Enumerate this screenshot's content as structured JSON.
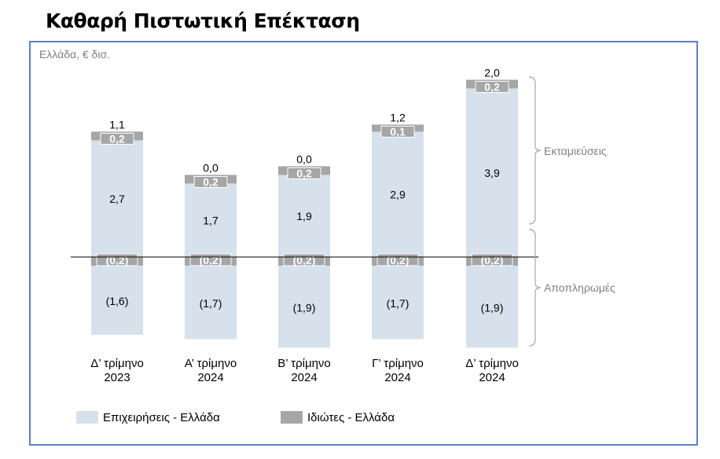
{
  "title": "Καθαρή Πιστωτική Επέκταση",
  "chart_data": {
    "type": "bar",
    "stacked": true,
    "title": "Καθαρή Πιστωτική Επέκταση",
    "subtitle": "Ελλάδα, € δισ.",
    "categories": [
      [
        "Δ’ τρίμηνο",
        "2023"
      ],
      [
        "Α’ τρίμηνο",
        "2024"
      ],
      [
        "Β’ τρίμηνο",
        "2024"
      ],
      [
        "Γ’ τρίμηνο",
        "2024"
      ],
      [
        "Δ’ τρίμηνο",
        "2024"
      ]
    ],
    "series": [
      {
        "name": "Επιχειρήσεις - Ελλάδα",
        "role": "disbursements",
        "color": "#d6e1ec",
        "values": [
          2.7,
          1.7,
          1.9,
          2.9,
          3.9
        ],
        "labels": [
          "2,7",
          "1,7",
          "1,9",
          "2,9",
          "3,9"
        ]
      },
      {
        "name": "Ιδιώτες - Ελλάδα",
        "role": "disbursements",
        "color": "#a6a6a6",
        "values": [
          0.2,
          0.2,
          0.2,
          0.1,
          0.2
        ],
        "labels": [
          "0,2",
          "0,2",
          "0,2",
          "0,1",
          "0,2"
        ]
      },
      {
        "name": "Ιδιώτες - Ελλάδα",
        "role": "repayments",
        "color": "#a6a6a6",
        "values": [
          -0.2,
          -0.2,
          -0.2,
          -0.2,
          -0.2
        ],
        "labels": [
          "(0,2)",
          "(0,2)",
          "(0,2)",
          "(0,2)",
          "(0,2)"
        ]
      },
      {
        "name": "Επιχειρήσεις - Ελλάδα",
        "role": "repayments",
        "color": "#d6e1ec",
        "values": [
          -1.6,
          -1.7,
          -1.9,
          -1.7,
          -1.9
        ],
        "labels": [
          "(1,6)",
          "(1,7)",
          "(1,9)",
          "(1,7)",
          "(1,9)"
        ]
      }
    ],
    "net_totals": [
      1.1,
      0.0,
      0.0,
      1.2,
      2.0
    ],
    "net_labels": [
      "1,1",
      "0,0",
      "0,0",
      "1,2",
      "2,0"
    ],
    "annotations": [
      "Εκταμιεύσεις",
      "Αποπληρωμές"
    ],
    "legend": [
      "Επιχειρήσεις - Ελλάδα",
      "Ιδιώτες - Ελλάδα"
    ],
    "legend_position": "bottom-left",
    "grid": false
  }
}
